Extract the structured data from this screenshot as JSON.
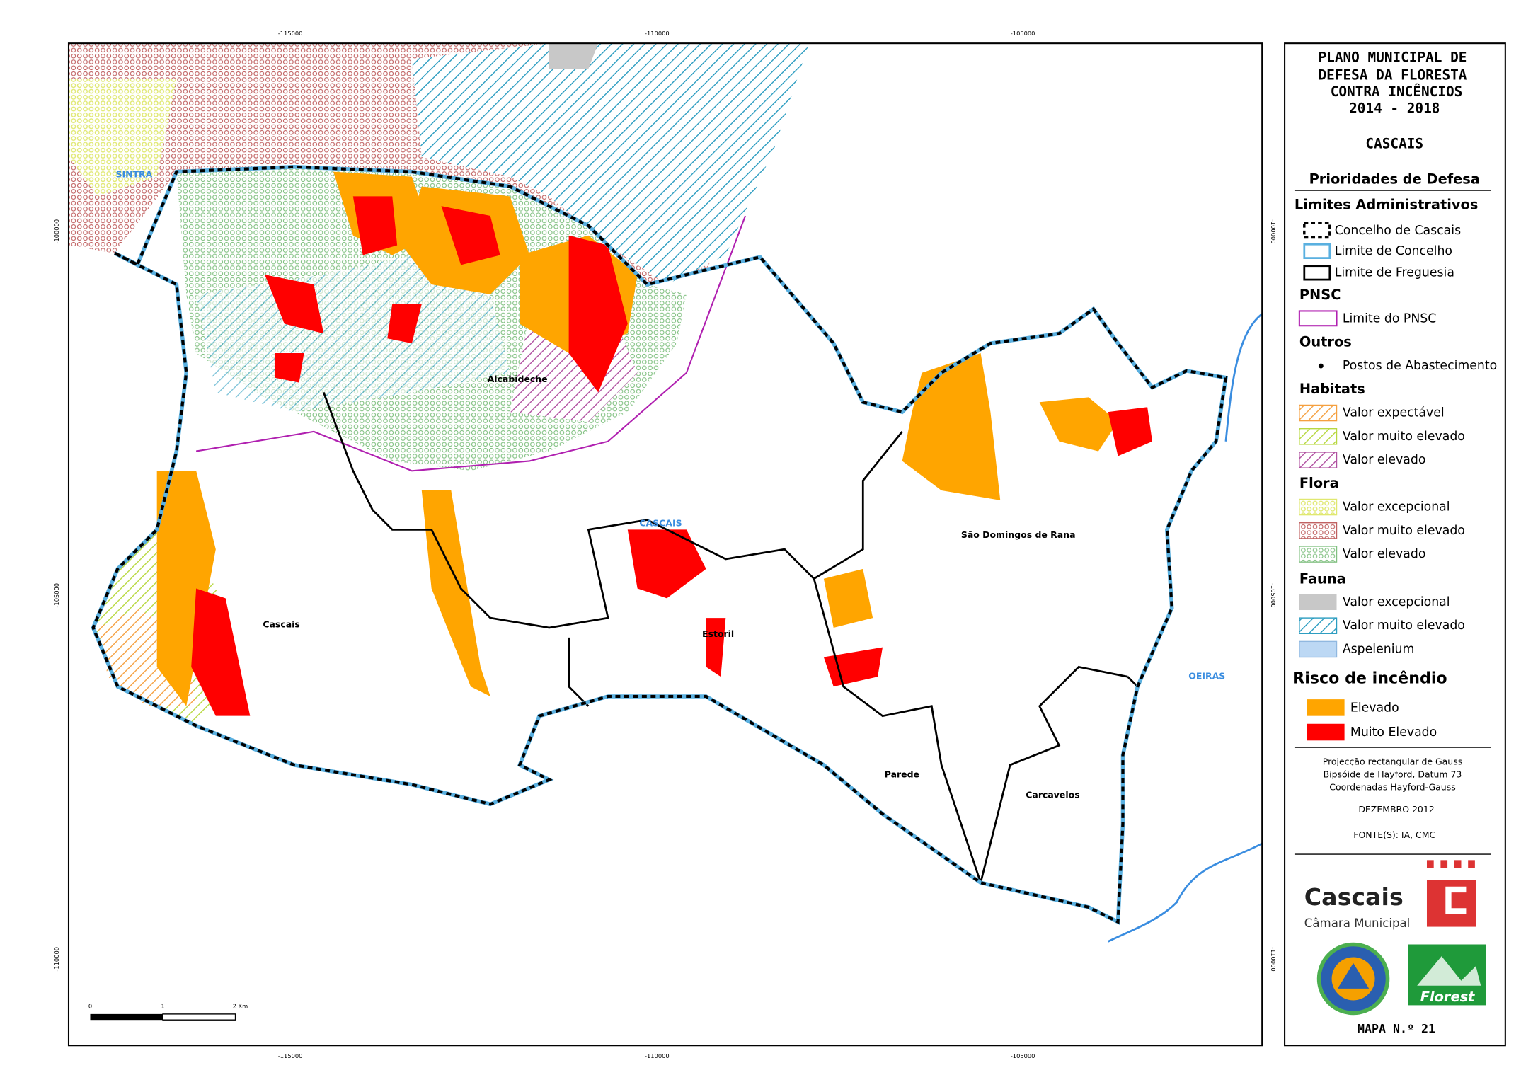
{
  "map": {
    "place_labels": [
      "SINTRA",
      "Alcabideche",
      "CASCAIS",
      "São Domingos de Rana",
      "Cascais",
      "Estoril",
      "OEIRAS",
      "Parede",
      "Carcavelos"
    ],
    "grid_labels": {
      "top": [
        "-115000",
        "-110000",
        "-105000"
      ],
      "bottom": [
        "-115000",
        "-110000",
        "-105000"
      ],
      "left": [
        "-100000",
        "-105000",
        "-110000"
      ],
      "right": [
        "-100000",
        "-105000",
        "-110000"
      ]
    },
    "scale_bar": [
      "0",
      "1",
      "2 Km"
    ]
  },
  "legend": {
    "title_lines": [
      "PLANO MUNICIPAL DE",
      "DEFESA DA FLORESTA",
      "CONTRA INCÊNCIOS",
      "2014 - 2018"
    ],
    "municipality": "CASCAIS",
    "heading": "Prioridades de Defesa",
    "sections": [
      {
        "title": "Limites Administrativos",
        "items": [
          "Concelho de Cascais",
          "Limite de Concelho",
          "Limite de Freguesia"
        ]
      },
      {
        "title": "PNSC",
        "items": [
          "Limite do PNSC"
        ]
      },
      {
        "title": "Outros",
        "items": [
          "Postos de Abastecimento"
        ]
      },
      {
        "title": "Habitats",
        "items": [
          "Valor expectável",
          "Valor muito elevado",
          "Valor elevado"
        ]
      },
      {
        "title": "Flora",
        "items": [
          "Valor excepcional",
          "Valor muito elevado",
          "Valor elevado"
        ]
      },
      {
        "title": "Fauna",
        "items": [
          "Valor excepcional",
          "Valor muito elevado",
          "Aspelenium"
        ]
      },
      {
        "title": "Risco de incêndio",
        "items": [
          "Elevado",
          "Muito Elevado"
        ]
      }
    ],
    "projection": [
      "Projecção rectangular de Gauss",
      "Bipsóide de Hayford, Datum 73",
      "Coordenadas Hayford-Gauss"
    ],
    "date": "DEZEMBRO 2012",
    "sources": "FONTE(S): IA, CMC"
  },
  "logos": {
    "cascais": "Cascais",
    "cascais_sub": "Câmara Municipal",
    "florest": "Florest"
  },
  "map_number": "MAPA N.º 21"
}
